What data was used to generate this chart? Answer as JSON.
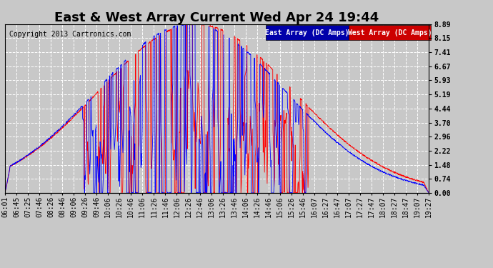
{
  "title": "East & West Array Current Wed Apr 24 19:44",
  "copyright": "Copyright 2013 Cartronics.com",
  "ylabel_right_ticks": [
    0.0,
    0.74,
    1.48,
    2.22,
    2.96,
    3.7,
    4.44,
    5.19,
    5.93,
    6.67,
    7.41,
    8.15,
    8.89
  ],
  "ymin": 0.0,
  "ymax": 8.89,
  "x_labels": [
    "06:01",
    "06:45",
    "07:25",
    "07:46",
    "08:26",
    "08:46",
    "09:06",
    "09:26",
    "09:46",
    "10:06",
    "10:26",
    "10:46",
    "11:06",
    "11:26",
    "11:46",
    "12:06",
    "12:26",
    "12:46",
    "13:06",
    "13:26",
    "13:46",
    "14:06",
    "14:26",
    "14:46",
    "15:06",
    "15:26",
    "15:46",
    "16:07",
    "16:27",
    "16:47",
    "17:07",
    "17:27",
    "17:47",
    "18:07",
    "18:27",
    "18:47",
    "19:07",
    "19:27"
  ],
  "background_color": "#c8c8c8",
  "plot_bg_color": "#c8c8c8",
  "grid_color": "#ffffff",
  "east_color": "#0000ff",
  "west_color": "#ff0000",
  "title_fontsize": 13,
  "tick_fontsize": 7,
  "copyright_fontsize": 7
}
